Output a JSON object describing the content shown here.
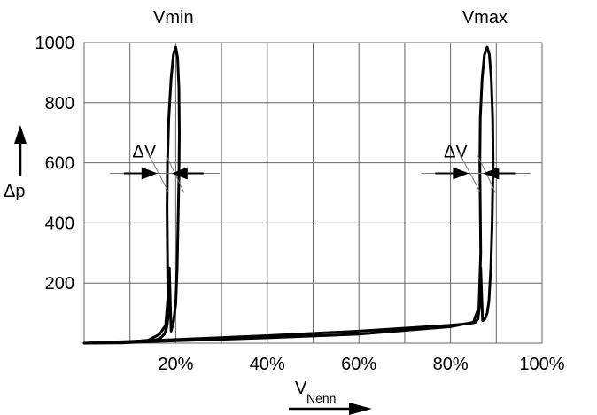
{
  "chart_data": {
    "type": "line",
    "xlabel": "V",
    "xlabel_sub": "Nenn",
    "ylabel": "Δp",
    "xlim": [
      0,
      100
    ],
    "ylim": [
      0,
      1000
    ],
    "x_ticks": [
      20,
      40,
      60,
      80,
      100
    ],
    "x_tick_labels": [
      "20%",
      "40%",
      "60%",
      "80%",
      "100%"
    ],
    "y_ticks": [
      200,
      400,
      600,
      800,
      1000
    ],
    "y_tick_labels": [
      "200",
      "400",
      "600",
      "800",
      "1000"
    ],
    "grid": true,
    "x_minor_grid": [
      10,
      30,
      50,
      70,
      90
    ],
    "annotations": [
      {
        "text": "Vmin",
        "x": 19.5,
        "y": 1000
      },
      {
        "text": "Vmax",
        "x": 87.5,
        "y": 1000
      },
      {
        "text": "ΔV",
        "x": 19.5,
        "y": 600,
        "arrows": "inward",
        "arrow_y": 565
      },
      {
        "text": "ΔV",
        "x": 87.5,
        "y": 600,
        "arrows": "inward",
        "arrow_y": 565
      }
    ],
    "series": [
      {
        "x": [
          0,
          8,
          14,
          16.5,
          17.8,
          18.3,
          18.2,
          18.1,
          18.2,
          18.5,
          19,
          19.5,
          20,
          20.4,
          20.7,
          20.8,
          20.7,
          20.5,
          20.3,
          20,
          19.5,
          19,
          18.6,
          18.5,
          18.3,
          18,
          17.5,
          16.5,
          14,
          8,
          0
        ],
        "y": [
          0,
          2,
          10,
          30,
          60,
          150,
          300,
          450,
          600,
          750,
          880,
          960,
          985,
          950,
          850,
          700,
          550,
          400,
          250,
          130,
          70,
          40,
          250,
          150,
          80,
          50,
          30,
          15,
          5,
          1,
          0
        ]
      },
      {
        "x": [
          0,
          10,
          20,
          40,
          60,
          80,
          85,
          86.2,
          86.6,
          86.5,
          86.4,
          86.5,
          86.9,
          87.4,
          88,
          88.5,
          88.9,
          89.2,
          89.3,
          89.1,
          88.8,
          88.4,
          88,
          87.5,
          87,
          86.6,
          86.3,
          86,
          85.5,
          84,
          80,
          60,
          40,
          20,
          10,
          0
        ],
        "y": [
          0,
          3,
          8,
          18,
          30,
          55,
          70,
          120,
          300,
          450,
          600,
          750,
          880,
          960,
          985,
          960,
          880,
          750,
          600,
          400,
          250,
          140,
          100,
          80,
          75,
          250,
          120,
          80,
          70,
          65,
          60,
          40,
          25,
          12,
          6,
          0
        ]
      }
    ]
  }
}
